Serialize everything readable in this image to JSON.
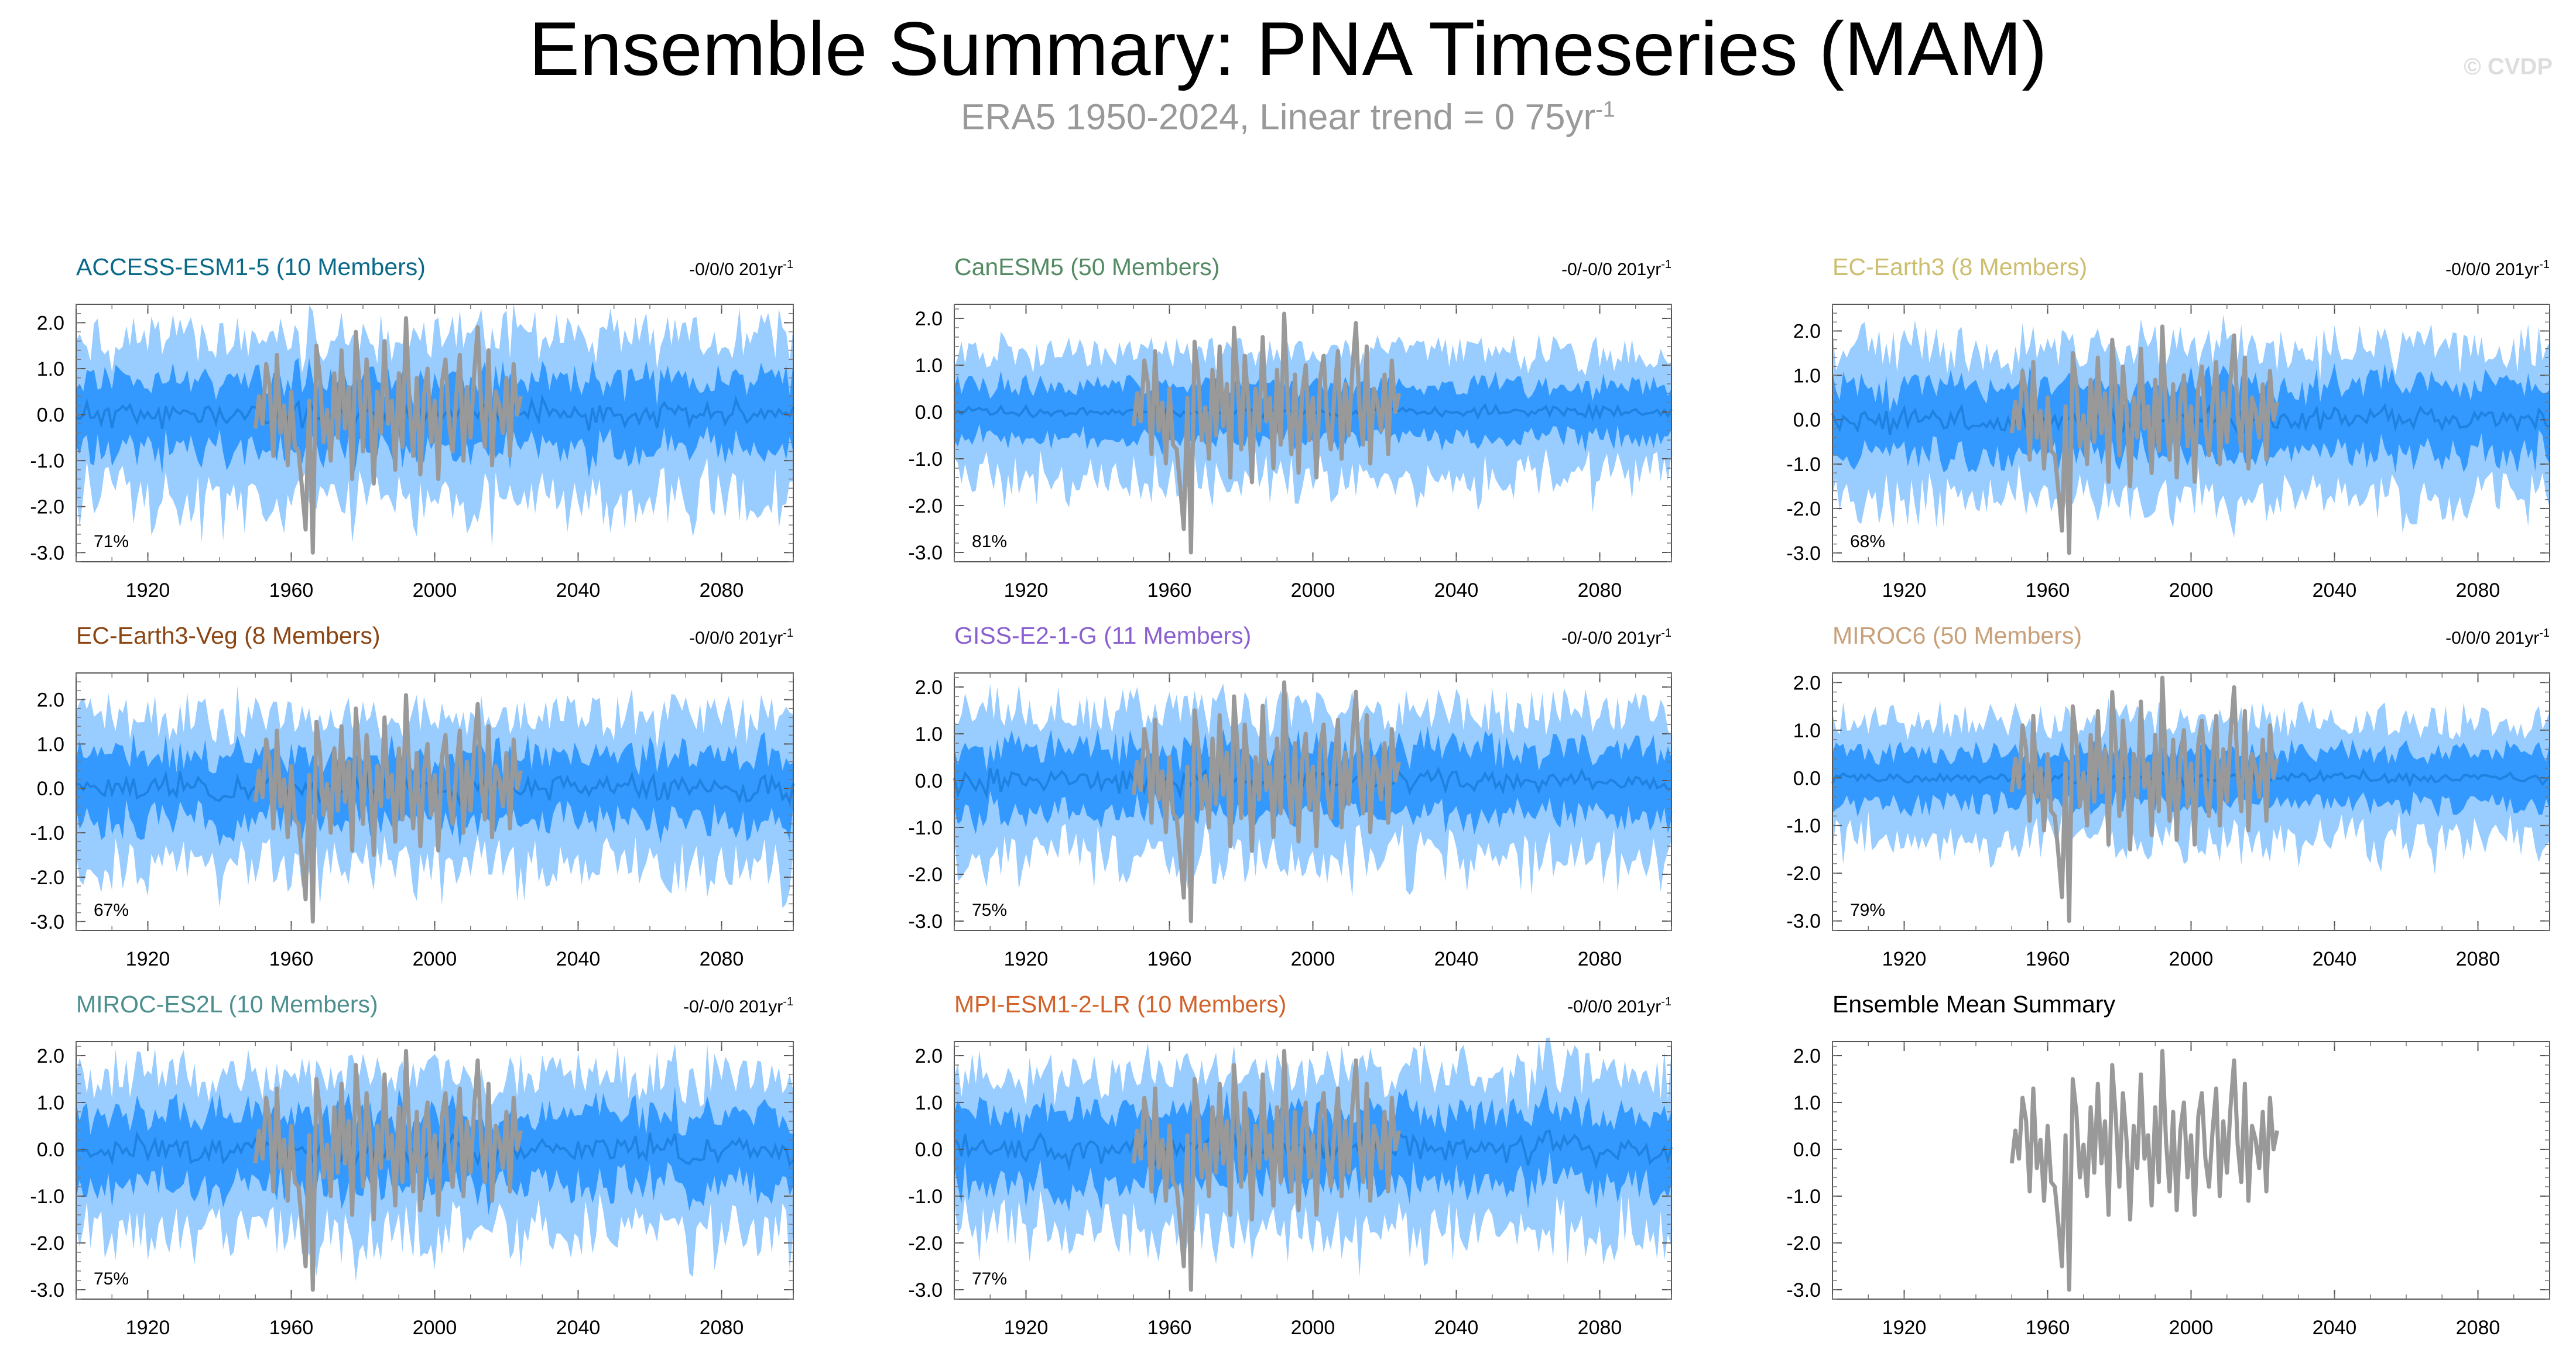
{
  "header": {
    "title": "Ensemble Summary: PNA Timeseries (MAM)",
    "subtitle": "ERA5 1950-2024, Linear trend = 0 75yr",
    "subtitle_sup": "-1",
    "watermark": "© CVDP"
  },
  "axes": {
    "x_ticks": [
      "1920",
      "1960",
      "2000",
      "2040",
      "2080"
    ],
    "y_ticks": [
      "2.0",
      "1.0",
      "0.0",
      "-1.0",
      "-2.0",
      "-3.0"
    ]
  },
  "colors": {
    "outer_band": "#99ccff",
    "inner_band": "#3399ff",
    "ens_mean": "#1f82e0",
    "obs": "#999999"
  },
  "chart_data": [
    {
      "type": "area",
      "title": "ACCESS-ESM1-5 (10 Members)",
      "title_color": "#0b6a88",
      "trend": "-0/0/0 201yr",
      "trend_sup": "-1",
      "pct": "71%",
      "xlim": [
        1900,
        2100
      ],
      "ylim": [
        -3.2,
        2.4
      ],
      "outer_width": 1.7,
      "inner_width": 0.75,
      "mean_amp": 0.25,
      "seed": 11
    },
    {
      "type": "area",
      "title": "CanESM5 (50 Members)",
      "title_color": "#548b64",
      "trend": "-0/-0/0 201yr",
      "trend_sup": "-1",
      "pct": "81%",
      "xlim": [
        1900,
        2100
      ],
      "ylim": [
        -3.2,
        2.3
      ],
      "outer_width": 1.25,
      "inner_width": 0.55,
      "mean_amp": 0.1,
      "seed": 12
    },
    {
      "type": "area",
      "title": "EC-Earth3 (8 Members)",
      "title_color": "#cdbd6e",
      "trend": "-0/0/0 201yr",
      "trend_sup": "-1",
      "pct": "68%",
      "xlim": [
        1900,
        2100
      ],
      "ylim": [
        -3.2,
        2.6
      ],
      "outer_width": 1.6,
      "inner_width": 0.75,
      "mean_amp": 0.25,
      "seed": 13
    },
    {
      "type": "area",
      "title": "EC-Earth3-Veg (8 Members)",
      "title_color": "#8b4513",
      "trend": "-0/0/0 201yr",
      "trend_sup": "-1",
      "pct": "67%",
      "xlim": [
        1900,
        2100
      ],
      "ylim": [
        -3.2,
        2.6
      ],
      "outer_width": 1.6,
      "inner_width": 0.75,
      "mean_amp": 0.25,
      "seed": 14
    },
    {
      "type": "area",
      "title": "GISS-E2-1-G (11 Members)",
      "title_color": "#8a5fd0",
      "trend": "-0/-0/0 201yr",
      "trend_sup": "-1",
      "pct": "75%",
      "xlim": [
        1900,
        2100
      ],
      "ylim": [
        -3.2,
        2.3
      ],
      "outer_width": 1.5,
      "inner_width": 0.7,
      "mean_amp": 0.22,
      "seed": 15
    },
    {
      "type": "area",
      "title": "MIROC6 (50 Members)",
      "title_color": "#c8a07a",
      "trend": "-0/0/0 201yr",
      "trend_sup": "-1",
      "pct": "79%",
      "xlim": [
        1900,
        2100
      ],
      "ylim": [
        -3.2,
        2.2
      ],
      "outer_width": 1.2,
      "inner_width": 0.55,
      "mean_amp": 0.1,
      "seed": 16
    },
    {
      "type": "area",
      "title": "MIROC-ES2L (10 Members)",
      "title_color": "#4d8f8f",
      "trend": "-0/-0/0 201yr",
      "trend_sup": "-1",
      "pct": "75%",
      "xlim": [
        1900,
        2100
      ],
      "ylim": [
        -3.2,
        2.3
      ],
      "outer_width": 1.6,
      "inner_width": 0.75,
      "mean_amp": 0.25,
      "seed": 17
    },
    {
      "type": "area",
      "title": "MPI-ESM1-2-LR (10 Members)",
      "title_color": "#d2622a",
      "trend": "-0/0/0 201yr",
      "trend_sup": "-1",
      "pct": "77%",
      "xlim": [
        1900,
        2100
      ],
      "ylim": [
        -3.2,
        2.3
      ],
      "outer_width": 1.6,
      "inner_width": 0.75,
      "mean_amp": 0.25,
      "seed": 18
    },
    {
      "type": "line",
      "title": "Ensemble Mean Summary",
      "title_color": "#000000",
      "trend": "",
      "trend_sup": "",
      "pct": "",
      "xlim": [
        1900,
        2100
      ],
      "ylim": [
        -3.2,
        2.3
      ],
      "series_colors": [
        "#0b6a88",
        "#548b64",
        "#cdbd6e",
        "#8b4513",
        "#8a5fd0",
        "#c8a07a",
        "#4d8f8f",
        "#d2622a"
      ]
    }
  ],
  "obs_series": {
    "x_start": 1950,
    "values": [
      -0.3,
      0.4,
      -0.2,
      1.1,
      0.6,
      -0.9,
      1.3,
      -0.4,
      0.2,
      -1.1,
      0.5,
      -0.7,
      -0.8,
      -1.6,
      -2.5,
      0.3,
      -3.0,
      1.5,
      0.8,
      -0.6,
      0.1,
      -1.0,
      0.9,
      -0.5,
      1.4,
      -0.3,
      0.6,
      -1.4,
      1.8,
      0.7,
      -0.8,
      1.2,
      0.2,
      -1.5,
      0.5,
      -0.4,
      1.6,
      -0.2,
      0.3,
      -1.2,
      0.9,
      -0.7,
      2.1,
      0.2,
      -0.9,
      0.8,
      -1.3,
      0.4,
      1.0,
      -0.6,
      0.3,
      -1.4,
      0.7,
      1.2,
      -0.2,
      -0.8,
      0.4,
      1.3,
      -1.0,
      0.6,
      -0.5,
      0.9,
      1.9,
      0.1,
      -0.7,
      1.4,
      -1.1,
      0.5,
      0.2,
      -0.4,
      0.8,
      -0.9,
      1.1,
      0.0,
      0.4
    ]
  }
}
